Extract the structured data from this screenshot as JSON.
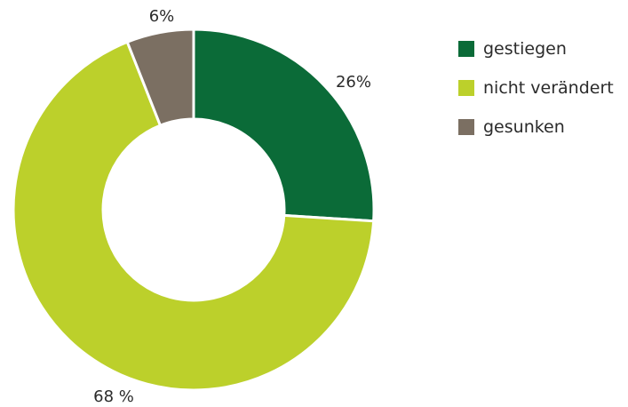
{
  "chart_data": {
    "type": "pie",
    "variant": "donut",
    "title": "",
    "categories": [
      "gestiegen",
      "nicht verändert",
      "gesunken"
    ],
    "values": [
      26,
      68,
      6
    ],
    "unit": "%",
    "data_labels": [
      "26%",
      "68 %",
      "6%"
    ],
    "colors": [
      "#0b6b38",
      "#bcd02b",
      "#7b6f62"
    ],
    "legend_position": "right",
    "start_angle_deg": 0,
    "direction": "clockwise"
  }
}
